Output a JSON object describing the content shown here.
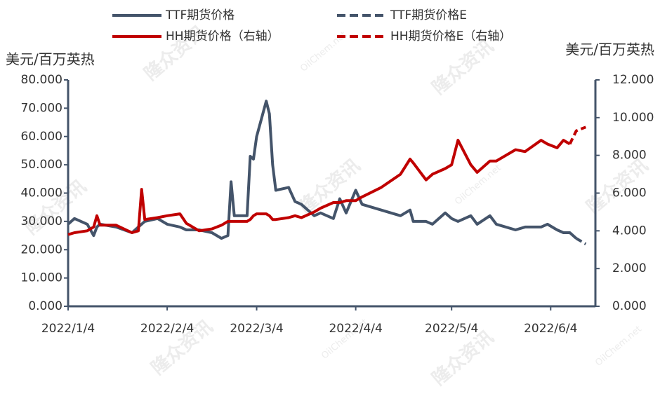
{
  "chart_data": {
    "type": "line",
    "y_label": "美元/百万英热",
    "y2_label": "美元/百万英热",
    "watermarks": [
      "隆众资讯",
      "OilChem.net"
    ],
    "x": [
      "2022/1/4",
      "2022/1/6",
      "2022/1/10",
      "2022/1/12",
      "2022/1/13",
      "2022/1/14",
      "2022/1/19",
      "2022/1/24",
      "2022/1/26",
      "2022/1/27",
      "2022/1/28",
      "2022/2/1",
      "2022/2/4",
      "2022/2/8",
      "2022/2/10",
      "2022/2/14",
      "2022/2/18",
      "2022/2/21",
      "2022/2/23",
      "2022/2/24",
      "2022/2/25",
      "2022/3/1",
      "2022/3/2",
      "2022/3/3",
      "2022/3/4",
      "2022/3/7",
      "2022/3/8",
      "2022/3/9",
      "2022/3/10",
      "2022/3/14",
      "2022/3/16",
      "2022/3/18",
      "2022/3/22",
      "2022/3/24",
      "2022/3/28",
      "2022/3/30",
      "2022/4/1",
      "2022/4/4",
      "2022/4/6",
      "2022/4/12",
      "2022/4/18",
      "2022/4/21",
      "2022/4/22",
      "2022/4/26",
      "2022/4/28",
      "2022/5/2",
      "2022/5/4",
      "2022/5/6",
      "2022/5/10",
      "2022/5/12",
      "2022/5/16",
      "2022/5/18",
      "2022/5/24",
      "2022/5/27",
      "2022/6/1",
      "2022/6/3",
      "2022/6/6",
      "2022/6/8",
      "2022/6/10",
      "2022/6/12",
      "2022/6/15"
    ],
    "series": [
      {
        "name": "TTF期货价格",
        "color": "#44546a",
        "dash": false,
        "axis": "y",
        "values": [
          29,
          31,
          29,
          25,
          28,
          29,
          28,
          26,
          28,
          29,
          30,
          31,
          29,
          28,
          27,
          27,
          26,
          24,
          25,
          44,
          32,
          32,
          53,
          52,
          60,
          72.5,
          68,
          50,
          41,
          42,
          37,
          36,
          32,
          33,
          31,
          38,
          33,
          41,
          36,
          34,
          32,
          34,
          30,
          30,
          29,
          33,
          31,
          30,
          32,
          29,
          32,
          29,
          27,
          28,
          28,
          29,
          27,
          26,
          26,
          24,
          null
        ]
      },
      {
        "name": "TTF期货价格E",
        "color": "#44546a",
        "dash": true,
        "axis": "y",
        "values": [
          null,
          null,
          null,
          null,
          null,
          null,
          null,
          null,
          null,
          null,
          null,
          null,
          null,
          null,
          null,
          null,
          null,
          null,
          null,
          null,
          null,
          null,
          null,
          null,
          null,
          null,
          null,
          null,
          null,
          null,
          null,
          null,
          null,
          null,
          null,
          null,
          null,
          null,
          null,
          null,
          null,
          null,
          null,
          null,
          null,
          null,
          null,
          null,
          null,
          null,
          null,
          null,
          null,
          null,
          null,
          null,
          null,
          null,
          null,
          24,
          22
        ]
      },
      {
        "name": "HH期货价格（右轴）",
        "color": "#c00000",
        "dash": false,
        "axis": "y2",
        "values": [
          3.8,
          3.9,
          4.0,
          4.2,
          4.8,
          4.3,
          4.3,
          3.9,
          4.0,
          6.2,
          4.6,
          4.7,
          4.8,
          4.9,
          4.4,
          4.0,
          4.1,
          4.3,
          4.5,
          4.5,
          4.5,
          4.5,
          4.6,
          4.8,
          4.9,
          4.9,
          4.8,
          4.6,
          4.6,
          4.7,
          4.8,
          4.7,
          5.0,
          5.2,
          5.5,
          5.5,
          5.6,
          5.6,
          5.8,
          6.3,
          7.0,
          7.8,
          7.6,
          6.7,
          7.0,
          7.3,
          7.5,
          8.8,
          7.5,
          7.1,
          7.7,
          7.7,
          8.3,
          8.2,
          8.8,
          8.6,
          8.4,
          8.8,
          8.6,
          null,
          null
        ]
      },
      {
        "name": "HH期货价格E（右轴）",
        "color": "#c00000",
        "dash": true,
        "axis": "y2",
        "values": [
          null,
          null,
          null,
          null,
          null,
          null,
          null,
          null,
          null,
          null,
          null,
          null,
          null,
          null,
          null,
          null,
          null,
          null,
          null,
          null,
          null,
          null,
          null,
          null,
          null,
          null,
          null,
          null,
          null,
          null,
          null,
          null,
          null,
          null,
          null,
          null,
          null,
          null,
          null,
          null,
          null,
          null,
          null,
          null,
          null,
          null,
          null,
          null,
          null,
          null,
          null,
          null,
          null,
          null,
          null,
          null,
          null,
          null,
          8.6,
          9.3,
          9.5
        ]
      }
    ],
    "xlim": [
      "2022/1/4",
      "2022/6/18"
    ],
    "xticks": [
      "2022/1/4",
      "2022/2/4",
      "2022/3/4",
      "2022/4/4",
      "2022/5/4",
      "2022/6/4"
    ],
    "ylim": [
      0,
      80
    ],
    "yticks": [
      {
        "value": 0,
        "label": "0.000"
      },
      {
        "value": 10,
        "label": "10.000"
      },
      {
        "value": 20,
        "label": "20.000"
      },
      {
        "value": 30,
        "label": "30.000"
      },
      {
        "value": 40,
        "label": "40.000"
      },
      {
        "value": 50,
        "label": "50.000"
      },
      {
        "value": 60,
        "label": "60.000"
      },
      {
        "value": 70,
        "label": "70.000"
      },
      {
        "value": 80,
        "label": "80.000"
      }
    ],
    "y2lim": [
      0,
      12
    ],
    "y2ticks": [
      {
        "value": 0,
        "label": "0.000"
      },
      {
        "value": 2,
        "label": "2.000"
      },
      {
        "value": 4,
        "label": "4.000"
      },
      {
        "value": 6,
        "label": "6.000"
      },
      {
        "value": 8,
        "label": "8.000"
      },
      {
        "value": 10,
        "label": "10.000"
      },
      {
        "value": 12,
        "label": "12.000"
      }
    ],
    "grid": false,
    "legend": "top"
  }
}
